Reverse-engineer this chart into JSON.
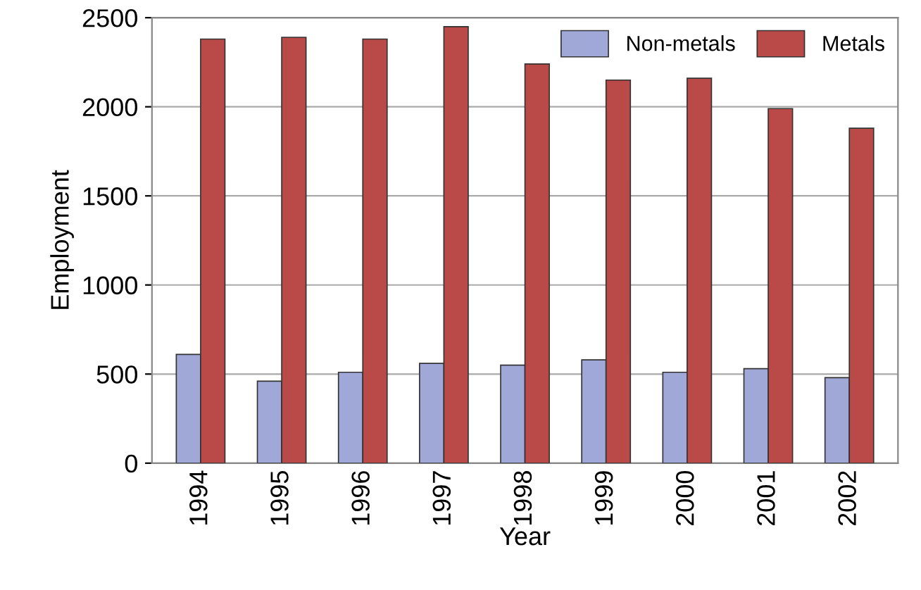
{
  "chart_data": {
    "type": "bar",
    "xlabel": "Year",
    "ylabel": "Employment",
    "categories": [
      "1994",
      "1995",
      "1996",
      "1997",
      "1998",
      "1999",
      "2000",
      "2001",
      "2002"
    ],
    "series": [
      {
        "name": "Non-metals",
        "color": "#a0a8d8",
        "values": [
          610,
          460,
          510,
          560,
          550,
          580,
          510,
          530,
          480
        ]
      },
      {
        "name": "Metals",
        "color": "#b94a48",
        "values": [
          2380,
          2390,
          2380,
          2450,
          2240,
          2150,
          2160,
          1990,
          1880
        ]
      }
    ],
    "ylim": [
      0,
      2500
    ],
    "yticks": [
      0,
      500,
      1000,
      1500,
      2000,
      2500
    ],
    "grid": "y",
    "legend": "top right"
  }
}
